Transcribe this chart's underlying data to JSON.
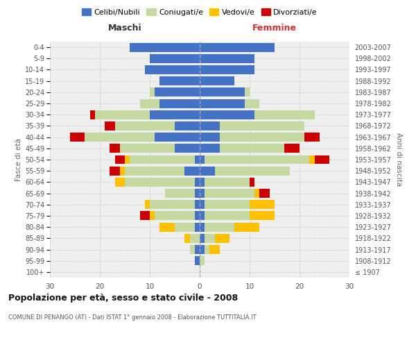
{
  "age_groups": [
    "100+",
    "95-99",
    "90-94",
    "85-89",
    "80-84",
    "75-79",
    "70-74",
    "65-69",
    "60-64",
    "55-59",
    "50-54",
    "45-49",
    "40-44",
    "35-39",
    "30-34",
    "25-29",
    "20-24",
    "15-19",
    "10-14",
    "5-9",
    "0-4"
  ],
  "birth_years": [
    "≤ 1907",
    "1908-1912",
    "1913-1917",
    "1918-1922",
    "1923-1927",
    "1928-1932",
    "1933-1937",
    "1938-1942",
    "1943-1947",
    "1948-1952",
    "1953-1957",
    "1958-1962",
    "1963-1967",
    "1968-1972",
    "1973-1977",
    "1978-1982",
    "1983-1987",
    "1988-1992",
    "1993-1997",
    "1998-2002",
    "2003-2007"
  ],
  "maschi_celibi": [
    0,
    1,
    1,
    0,
    1,
    1,
    1,
    1,
    1,
    3,
    1,
    5,
    9,
    5,
    10,
    8,
    9,
    8,
    11,
    10,
    14
  ],
  "maschi_coniugati": [
    0,
    0,
    1,
    2,
    4,
    8,
    9,
    6,
    14,
    12,
    13,
    11,
    14,
    12,
    11,
    4,
    1,
    0,
    0,
    0,
    0
  ],
  "maschi_vedovi": [
    0,
    0,
    0,
    1,
    3,
    1,
    1,
    0,
    2,
    1,
    1,
    0,
    0,
    0,
    0,
    0,
    0,
    0,
    0,
    0,
    0
  ],
  "maschi_divorziati": [
    0,
    0,
    0,
    0,
    0,
    2,
    0,
    0,
    0,
    2,
    2,
    2,
    3,
    2,
    1,
    0,
    0,
    0,
    0,
    0,
    0
  ],
  "femmine_celibi": [
    0,
    0,
    1,
    1,
    1,
    1,
    1,
    1,
    1,
    3,
    1,
    4,
    4,
    4,
    11,
    9,
    9,
    7,
    11,
    11,
    15
  ],
  "femmine_coniugati": [
    0,
    1,
    1,
    2,
    6,
    9,
    9,
    10,
    9,
    15,
    21,
    13,
    17,
    17,
    12,
    3,
    1,
    0,
    0,
    0,
    0
  ],
  "femmine_vedovi": [
    0,
    0,
    2,
    3,
    5,
    5,
    5,
    1,
    0,
    0,
    1,
    0,
    0,
    0,
    0,
    0,
    0,
    0,
    0,
    0,
    0
  ],
  "femmine_divorziati": [
    0,
    0,
    0,
    0,
    0,
    0,
    0,
    2,
    1,
    0,
    3,
    3,
    3,
    0,
    0,
    0,
    0,
    0,
    0,
    0,
    0
  ],
  "color_celibi": "#4472c4",
  "color_coniugati": "#c5d9a0",
  "color_vedovi": "#ffc000",
  "color_divorziati": "#cc0000",
  "title": "Popolazione per età, sesso e stato civile - 2008",
  "subtitle": "COMUNE DI PENANGO (AT) - Dati ISTAT 1° gennaio 2008 - Elaborazione TUTTITALIA.IT",
  "xlabel_left": "Maschi",
  "xlabel_right": "Femmine",
  "ylabel_left": "Fasce di età",
  "ylabel_right": "Anni di nascita",
  "xlim": 30,
  "bg_color": "#ffffff",
  "plot_bg": "#efefef",
  "grid_color": "#cccccc"
}
